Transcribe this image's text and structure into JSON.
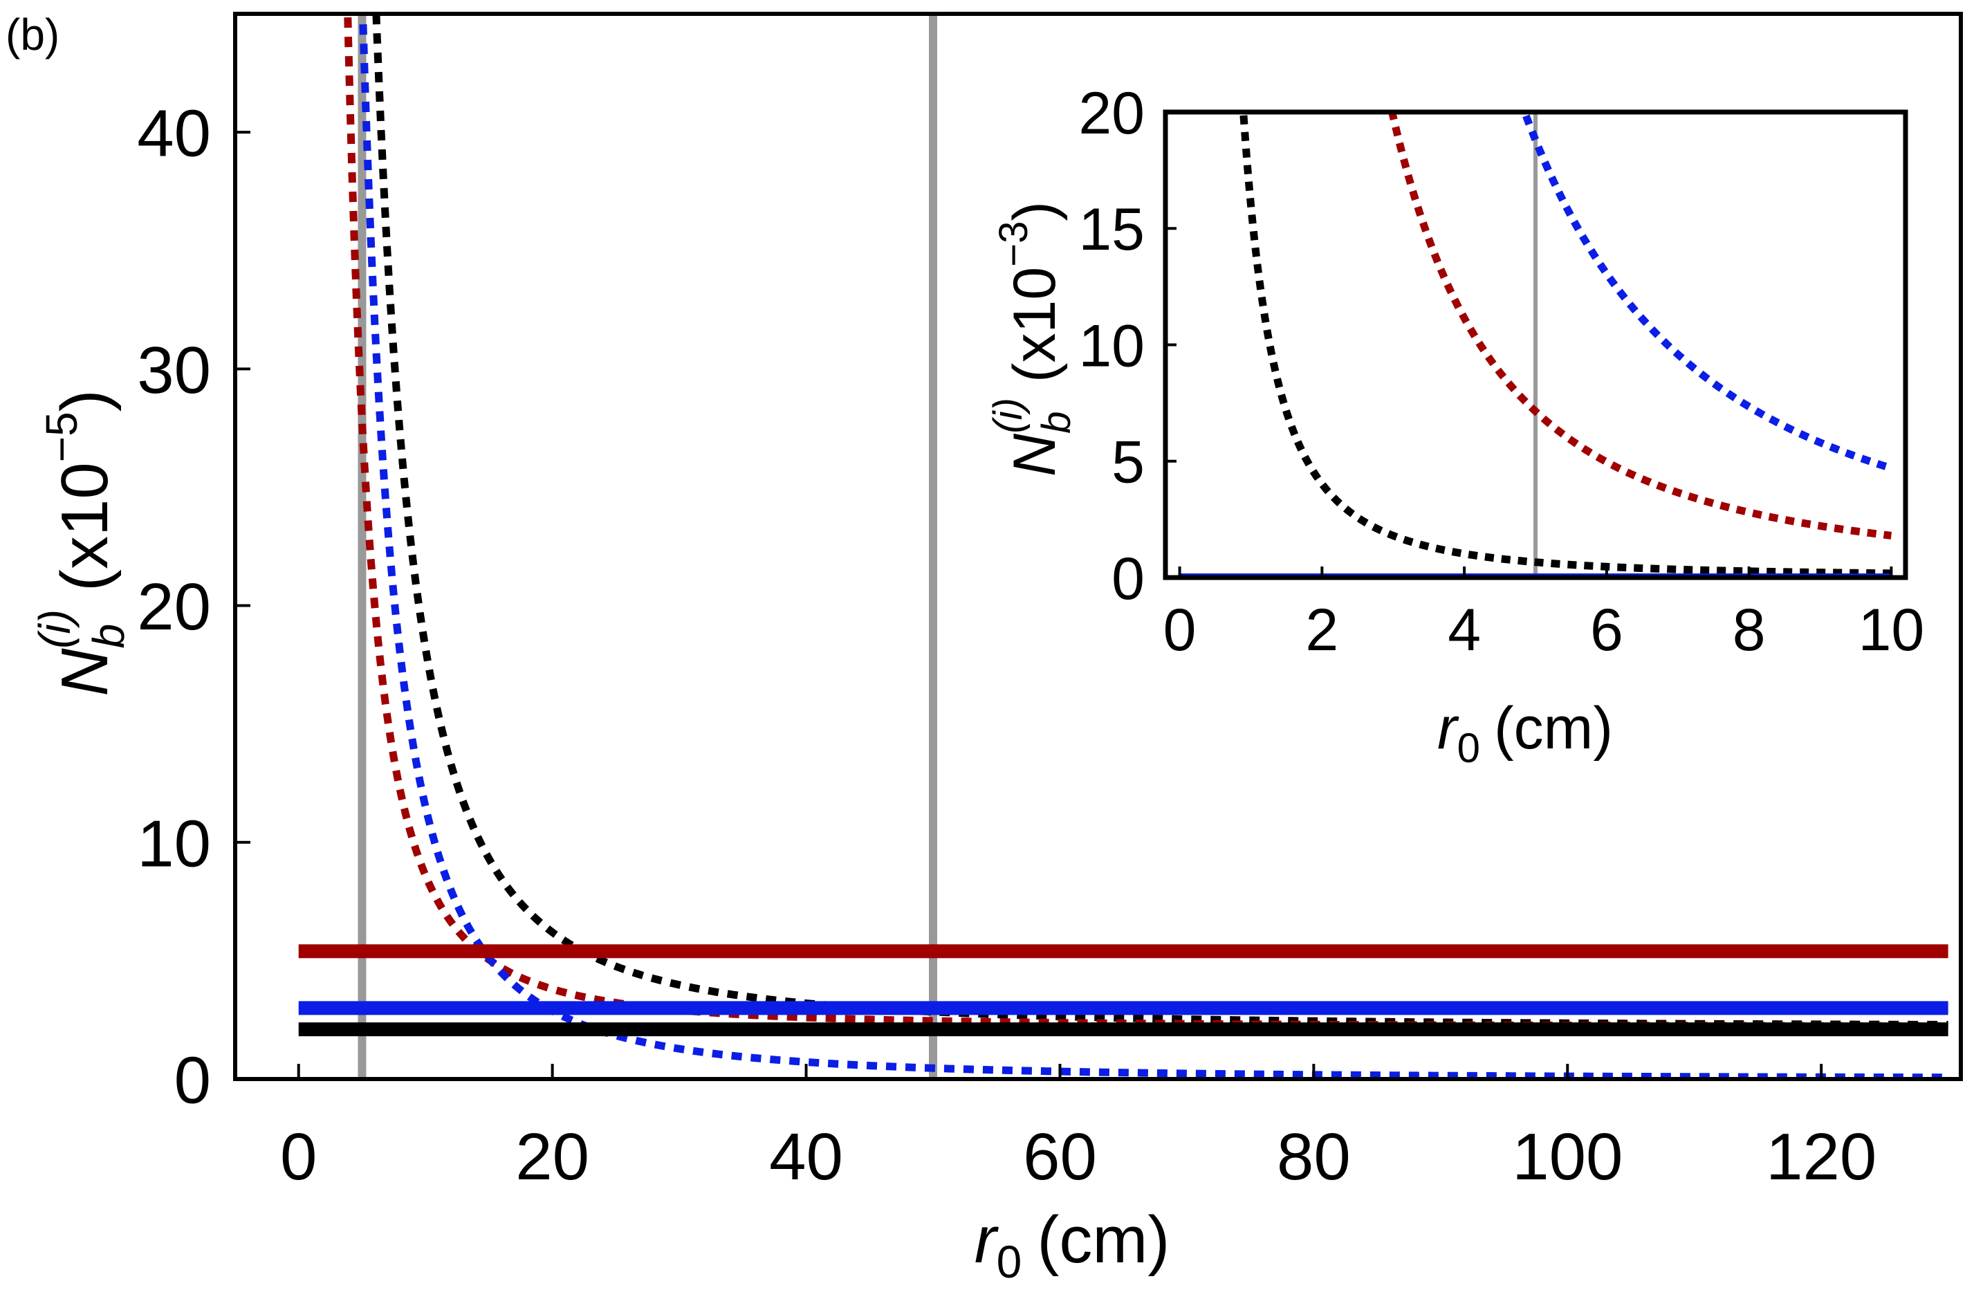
{
  "chart_data": [
    {
      "id": "main",
      "type": "line",
      "panel_label": "(b)",
      "xlabel": {
        "var": "r",
        "sub": "0",
        "unit": "(cm)"
      },
      "ylabel": {
        "var": "N",
        "sub": "b",
        "sup": "(i)",
        "scale_pre": "(x10",
        "scale_exp": "−5",
        "scale_post": ")"
      },
      "xlim": [
        -5,
        131
      ],
      "ylim": [
        0,
        45
      ],
      "xticks": [
        0,
        20,
        40,
        60,
        80,
        100,
        120
      ],
      "yticks": [
        0,
        10,
        20,
        30,
        40
      ],
      "vertical_lines": [
        5,
        50
      ],
      "series": [
        {
          "name": "black dotted",
          "style": "dotted",
          "color": "#000000",
          "c": 2.2,
          "A": 1600,
          "x0": 0,
          "x1": 130
        },
        {
          "name": "red dotted",
          "style": "dotted",
          "color": "#a00000",
          "c": 2.2,
          "A": 640,
          "x0": 0,
          "x1": 130
        },
        {
          "name": "blue dotted",
          "style": "dotted",
          "color": "#0a1ee6",
          "c": 0,
          "A": 1150,
          "x0": 0,
          "x1": 130
        },
        {
          "name": "red solid",
          "style": "solid",
          "color": "#a00000",
          "level": 5.4,
          "x0": 0,
          "x1": 130
        },
        {
          "name": "blue solid",
          "style": "solid",
          "color": "#0a1ee6",
          "level": 3.0,
          "x0": 0,
          "x1": 130
        },
        {
          "name": "black solid",
          "style": "solid",
          "color": "#000000",
          "level": 2.1,
          "x0": 0,
          "x1": 130
        }
      ]
    },
    {
      "id": "inset",
      "type": "line",
      "xlabel": {
        "var": "r",
        "sub": "0",
        "unit": "(cm)"
      },
      "ylabel": {
        "var": "N",
        "sub": "b",
        "sup": "(i)",
        "scale_pre": "(x10",
        "scale_exp": "−3",
        "scale_post": ")"
      },
      "xlim": [
        -0.2,
        10.2
      ],
      "ylim": [
        0,
        20
      ],
      "xticks": [
        0,
        2,
        4,
        6,
        8,
        10
      ],
      "yticks": [
        0,
        5,
        10,
        15,
        20
      ],
      "vertical_lines": [
        5
      ],
      "series": [
        {
          "name": "black dotted",
          "style": "dotted",
          "color": "#000000",
          "c": 0.022,
          "A": 16,
          "x0": 0,
          "x1": 10
        },
        {
          "name": "red dotted",
          "style": "dotted",
          "color": "#a00000",
          "c": 0.022,
          "A": 178,
          "x0": 0,
          "x1": 10
        },
        {
          "name": "blue dotted",
          "style": "dotted",
          "color": "#0a1ee6",
          "c": 0,
          "A": 470,
          "x0": 0,
          "x1": 10
        },
        {
          "name": "black solid",
          "style": "solid",
          "color": "#000000",
          "level": 0.021,
          "x0": 0,
          "x1": 10
        },
        {
          "name": "blue solid",
          "style": "solid",
          "color": "#0a1ee6",
          "level": 0.03,
          "x0": 0,
          "x1": 10
        }
      ]
    }
  ]
}
